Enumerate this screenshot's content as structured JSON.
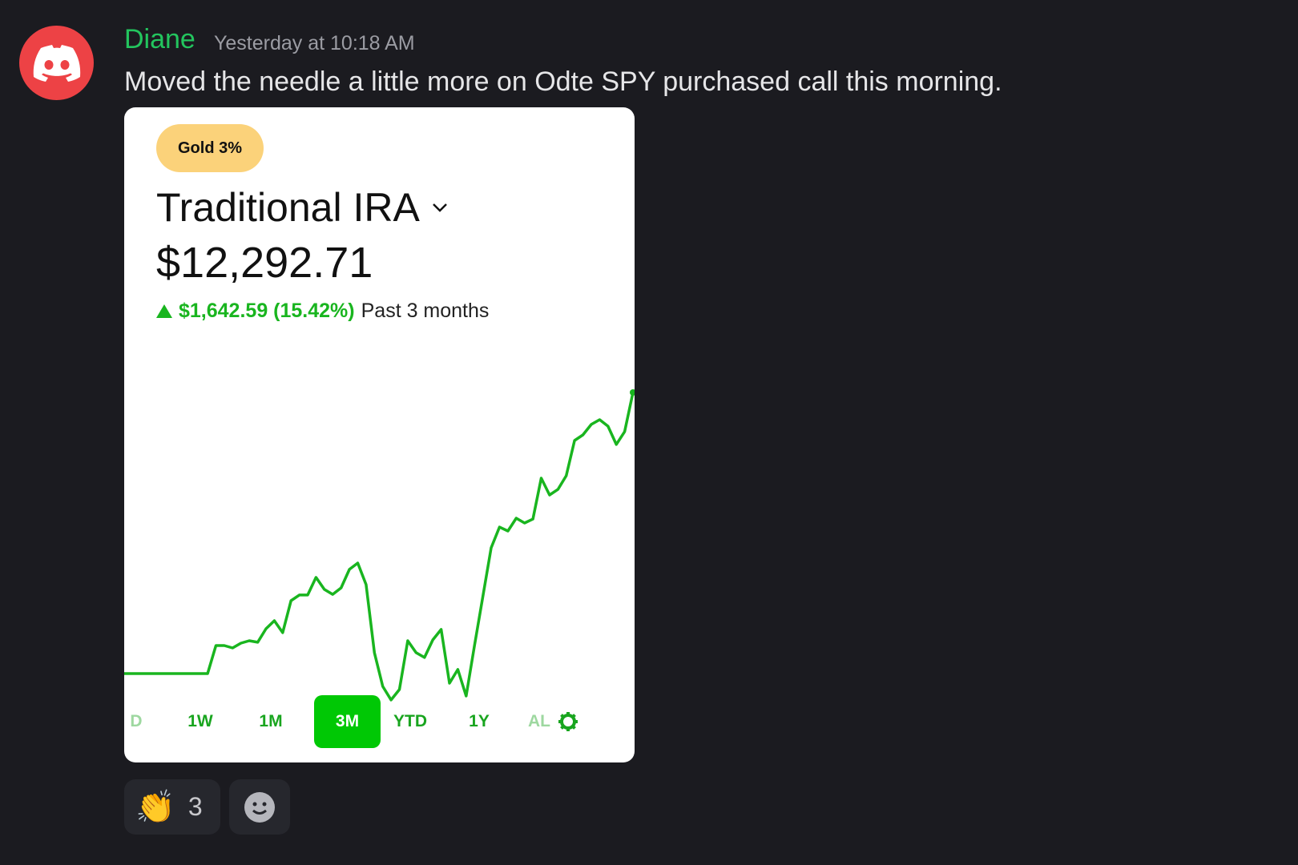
{
  "message": {
    "author": "Diane",
    "timestamp": "Yesterday at 10:18 AM",
    "text": "Moved the needle a little more on Odte SPY purchased call this morning.",
    "author_color": "#23c55e",
    "avatar_icon": "discord-logo-icon"
  },
  "card": {
    "badge": "Gold 3%",
    "account_title": "Traditional IRA",
    "balance": "$12,292.71",
    "change_amount": "$1,642.59 (15.42%)",
    "change_period": "Past 3 months",
    "accent_color": "#00c805",
    "tabs": [
      {
        "label": "D",
        "active": false
      },
      {
        "label": "1W",
        "active": false
      },
      {
        "label": "1M",
        "active": false
      },
      {
        "label": "3M",
        "active": true
      },
      {
        "label": "YTD",
        "active": false
      },
      {
        "label": "1Y",
        "active": false
      },
      {
        "label": "AL",
        "active": false
      }
    ]
  },
  "chart_data": {
    "type": "line",
    "title": "",
    "xlabel": "",
    "ylabel": "",
    "grid": false,
    "color": "#19b51f",
    "values": [
      10650,
      10650,
      10650,
      10650,
      10650,
      10650,
      10650,
      10650,
      10650,
      10650,
      10650,
      10814,
      10814,
      10800,
      10828,
      10842,
      10833,
      10912,
      10959,
      10889,
      11076,
      11109,
      11109,
      11212,
      11142,
      11113,
      11151,
      11259,
      11296,
      11170,
      10772,
      10575,
      10496,
      10557,
      10842,
      10772,
      10744,
      10847,
      10908,
      10594,
      10674,
      10519,
      10814,
      11099,
      11385,
      11506,
      11483,
      11558,
      11530,
      11553,
      11792,
      11694,
      11726,
      11806,
      12012,
      12045,
      12106,
      12134,
      12096,
      11989,
      12064,
      12293
    ]
  },
  "reactions": [
    {
      "emoji": "👏",
      "count": "3"
    }
  ],
  "add_reaction_icon": "smiley-icon"
}
